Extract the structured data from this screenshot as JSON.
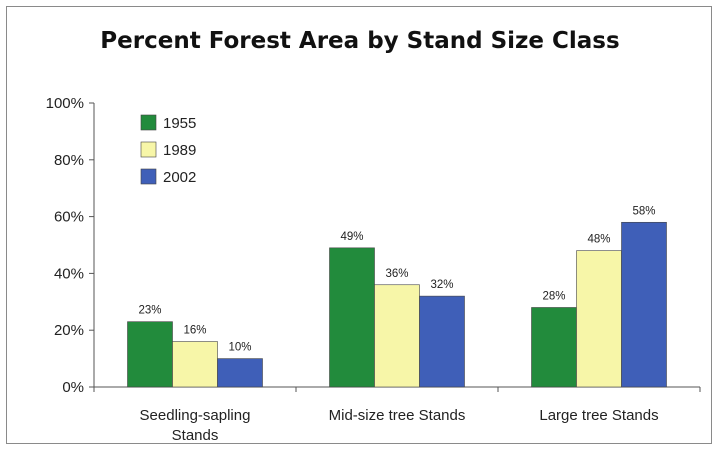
{
  "chart_data": {
    "type": "bar",
    "title": "Percent Forest Area by Stand Size Class",
    "xlabel": "",
    "ylabel": "",
    "ylim": [
      0,
      100
    ],
    "yticks": [
      "0%",
      "20%",
      "40%",
      "60%",
      "80%",
      "100%"
    ],
    "ytick_values": [
      0,
      20,
      40,
      60,
      80,
      100
    ],
    "categories": [
      [
        "Seedling-sapling",
        "Stands"
      ],
      [
        "Mid-size tree Stands"
      ],
      [
        "Large tree Stands"
      ]
    ],
    "series": [
      {
        "name": "1955",
        "color": "#228b3c",
        "values": [
          23,
          49,
          28
        ],
        "labels": [
          "23%",
          "49%",
          "28%"
        ]
      },
      {
        "name": "1989",
        "color": "#f7f6a8",
        "values": [
          16,
          36,
          48
        ],
        "labels": [
          "16%",
          "36%",
          "48%"
        ]
      },
      {
        "name": "2002",
        "color": "#3f5fb8",
        "values": [
          10,
          32,
          58
        ],
        "labels": [
          "10%",
          "32%",
          "58%"
        ]
      }
    ],
    "legend": "top-left",
    "grid": false
  }
}
